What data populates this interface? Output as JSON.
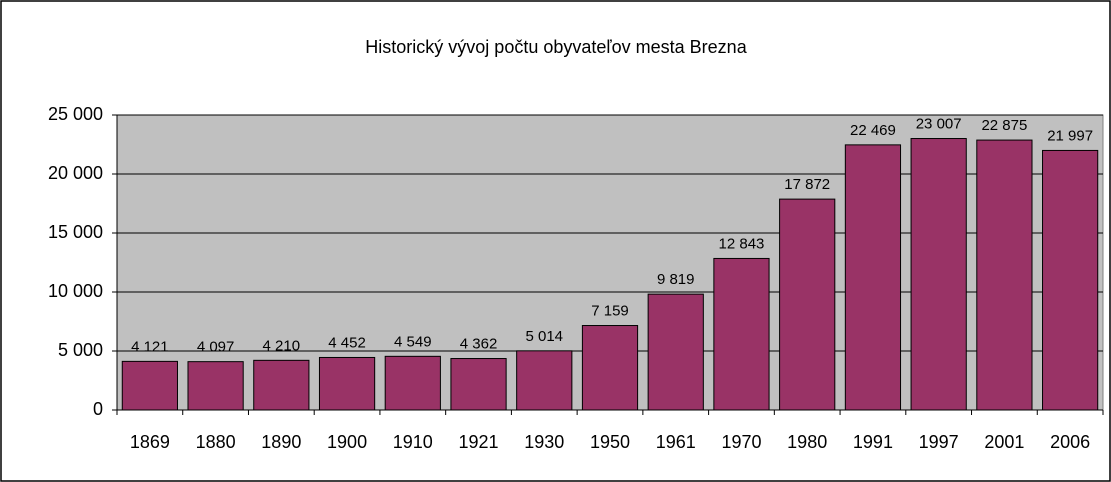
{
  "chart_data": {
    "type": "bar",
    "title": "Historický vývoj počtu obyvateľov mesta Brezna",
    "categories": [
      "1869",
      "1880",
      "1890",
      "1900",
      "1910",
      "1921",
      "1930",
      "1950",
      "1961",
      "1970",
      "1980",
      "1991",
      "1997",
      "2001",
      "2006"
    ],
    "values": [
      4121,
      4097,
      4210,
      4452,
      4549,
      4362,
      5014,
      7159,
      9819,
      12843,
      17872,
      22469,
      23007,
      22875,
      21997
    ],
    "value_labels": [
      "4 121",
      "4 097",
      "4 210",
      "4 452",
      "4 549",
      "4 362",
      "5 014",
      "7 159",
      "9 819",
      "12 843",
      "17 872",
      "22 469",
      "23 007",
      "22 875",
      "21 997"
    ],
    "color": "#993366",
    "ylim": [
      0,
      25000
    ],
    "yticks": [
      0,
      {
        "value": 5000,
        "label": "5 000"
      },
      {
        "value": 10000,
        "label": "10 000"
      },
      {
        "value": 15000,
        "label": "15 000"
      },
      {
        "value": 20000,
        "label": "20 000"
      },
      {
        "value": 25000,
        "label": "25 000"
      }
    ],
    "grid": true
  }
}
